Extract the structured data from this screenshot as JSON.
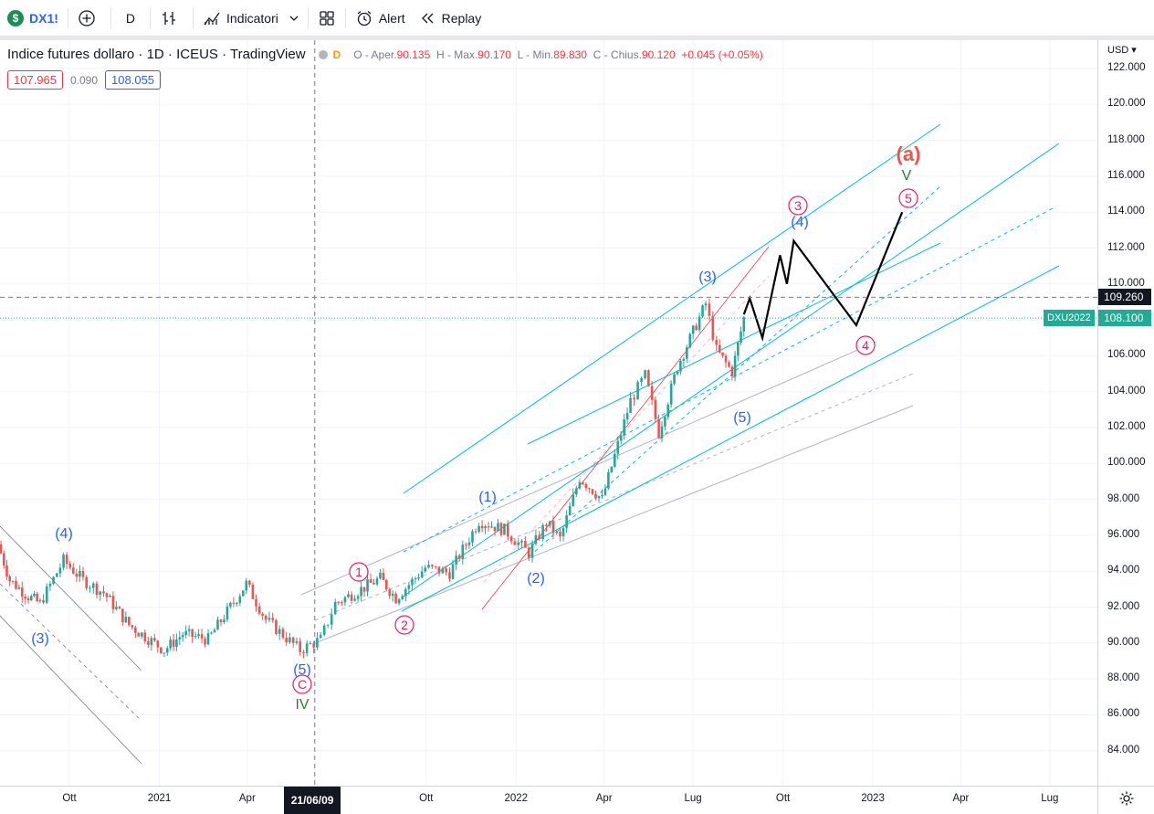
{
  "toolbar": {
    "symbol": "DX1!",
    "symbol_badge": "$",
    "interval": "D",
    "indicators_label": "Indicatori",
    "alert_label": "Alert",
    "replay_label": "Replay"
  },
  "legend": {
    "title": "Indice futures dollaro · 1D · ICEUS · TradingView",
    "badge": "D",
    "open_label": "O - Aper.",
    "open": "90.135",
    "high_label": "H - Max.",
    "high": "90.170",
    "low_label": "L - Min.",
    "low": "89.830",
    "close_label": "C - Chius.",
    "close": "90.120",
    "change": "+0.045 (+0.05%)",
    "sell_price": "107.965",
    "spread": "0.090",
    "buy_price": "108.055"
  },
  "price_axis": {
    "currency": "USD ▾",
    "ticks": [
      "122.000",
      "120.000",
      "118.000",
      "116.000",
      "114.000",
      "112.000",
      "110.000",
      "108.000",
      "106.000",
      "104.000",
      "102.000",
      "100.000",
      "98.000",
      "96.000",
      "94.000",
      "92.000",
      "90.000",
      "88.000",
      "86.000",
      "84.000"
    ],
    "crosshair_price": "109.260",
    "last_price": "108.100",
    "last_symbol": "DXU2022"
  },
  "time_axis": {
    "ticks": [
      "Ott",
      "2021",
      "Apr",
      "Ott",
      "2022",
      "Apr",
      "Lug",
      "Ott",
      "2023",
      "Apr",
      "Lug"
    ],
    "crosshair_date": "21/06/09"
  },
  "wave_labels": {
    "blue": [
      "(4)",
      "(3)",
      "(5)",
      "(1)",
      "(2)",
      "(3)",
      "(4)",
      "(5)"
    ],
    "pink": [
      "1",
      "2",
      "3",
      "4",
      "5",
      "C"
    ],
    "red_a": "(a)",
    "green": [
      "IV",
      "V"
    ]
  },
  "colors": {
    "up": "#26a69a",
    "down": "#ef5350",
    "channel": "#00bcd4",
    "crosshair_price_bg": "#131722",
    "last_price_bg": "#22ab94",
    "blue_label": "#2962ff",
    "pink_label": "#e91e63",
    "green_label": "#2e7d32"
  },
  "chart_data": {
    "type": "candlestick",
    "symbol": "DX1!",
    "interval": "1D",
    "ylim": [
      83,
      123
    ],
    "xlabel": "",
    "ylabel": "USD",
    "close_path": [
      [
        "2020-07-20",
        95.5
      ],
      [
        "2020-08-01",
        93.5
      ],
      [
        "2020-08-20",
        92.6
      ],
      [
        "2020-09-01",
        92.2
      ],
      [
        "2020-09-25",
        94.6
      ],
      [
        "2020-10-15",
        93.5
      ],
      [
        "2020-11-05",
        92.8
      ],
      [
        "2020-12-01",
        91.0
      ],
      [
        "2021-01-06",
        89.6
      ],
      [
        "2021-01-25",
        90.5
      ],
      [
        "2021-02-20",
        90.2
      ],
      [
        "2021-03-31",
        93.3
      ],
      [
        "2021-04-20",
        91.3
      ],
      [
        "2021-05-25",
        89.6
      ],
      [
        "2021-06-15",
        90.2
      ],
      [
        "2021-06-30",
        92.2
      ],
      [
        "2021-07-20",
        92.8
      ],
      [
        "2021-08-15",
        93.6
      ],
      [
        "2021-08-31",
        92.5
      ],
      [
        "2021-09-30",
        94.2
      ],
      [
        "2021-10-25",
        93.9
      ],
      [
        "2021-11-24",
        96.8
      ],
      [
        "2021-12-20",
        96.3
      ],
      [
        "2022-01-14",
        95.0
      ],
      [
        "2022-02-01",
        96.7
      ],
      [
        "2022-02-15",
        95.8
      ],
      [
        "2022-03-07",
        99.2
      ],
      [
        "2022-03-30",
        98.0
      ],
      [
        "2022-04-28",
        103.5
      ],
      [
        "2022-05-13",
        104.9
      ],
      [
        "2022-05-27",
        101.7
      ],
      [
        "2022-06-15",
        105.4
      ],
      [
        "2022-07-14",
        108.9
      ],
      [
        "2022-07-25",
        106.3
      ],
      [
        "2022-08-10",
        105.1
      ],
      [
        "2022-08-22",
        108.1
      ]
    ],
    "projection_path": [
      [
        "2022-08-22",
        108.3
      ],
      [
        "2022-08-28",
        109.2
      ],
      [
        "2022-09-10",
        107.0
      ],
      [
        "2022-09-28",
        111.6
      ],
      [
        "2022-10-05",
        110.0
      ],
      [
        "2022-10-12",
        112.4
      ],
      [
        "2022-12-15",
        107.7
      ],
      [
        "2023-01-31",
        114.0
      ]
    ],
    "series": [
      {
        "name": "DXU2022",
        "last": 108.1
      }
    ]
  }
}
